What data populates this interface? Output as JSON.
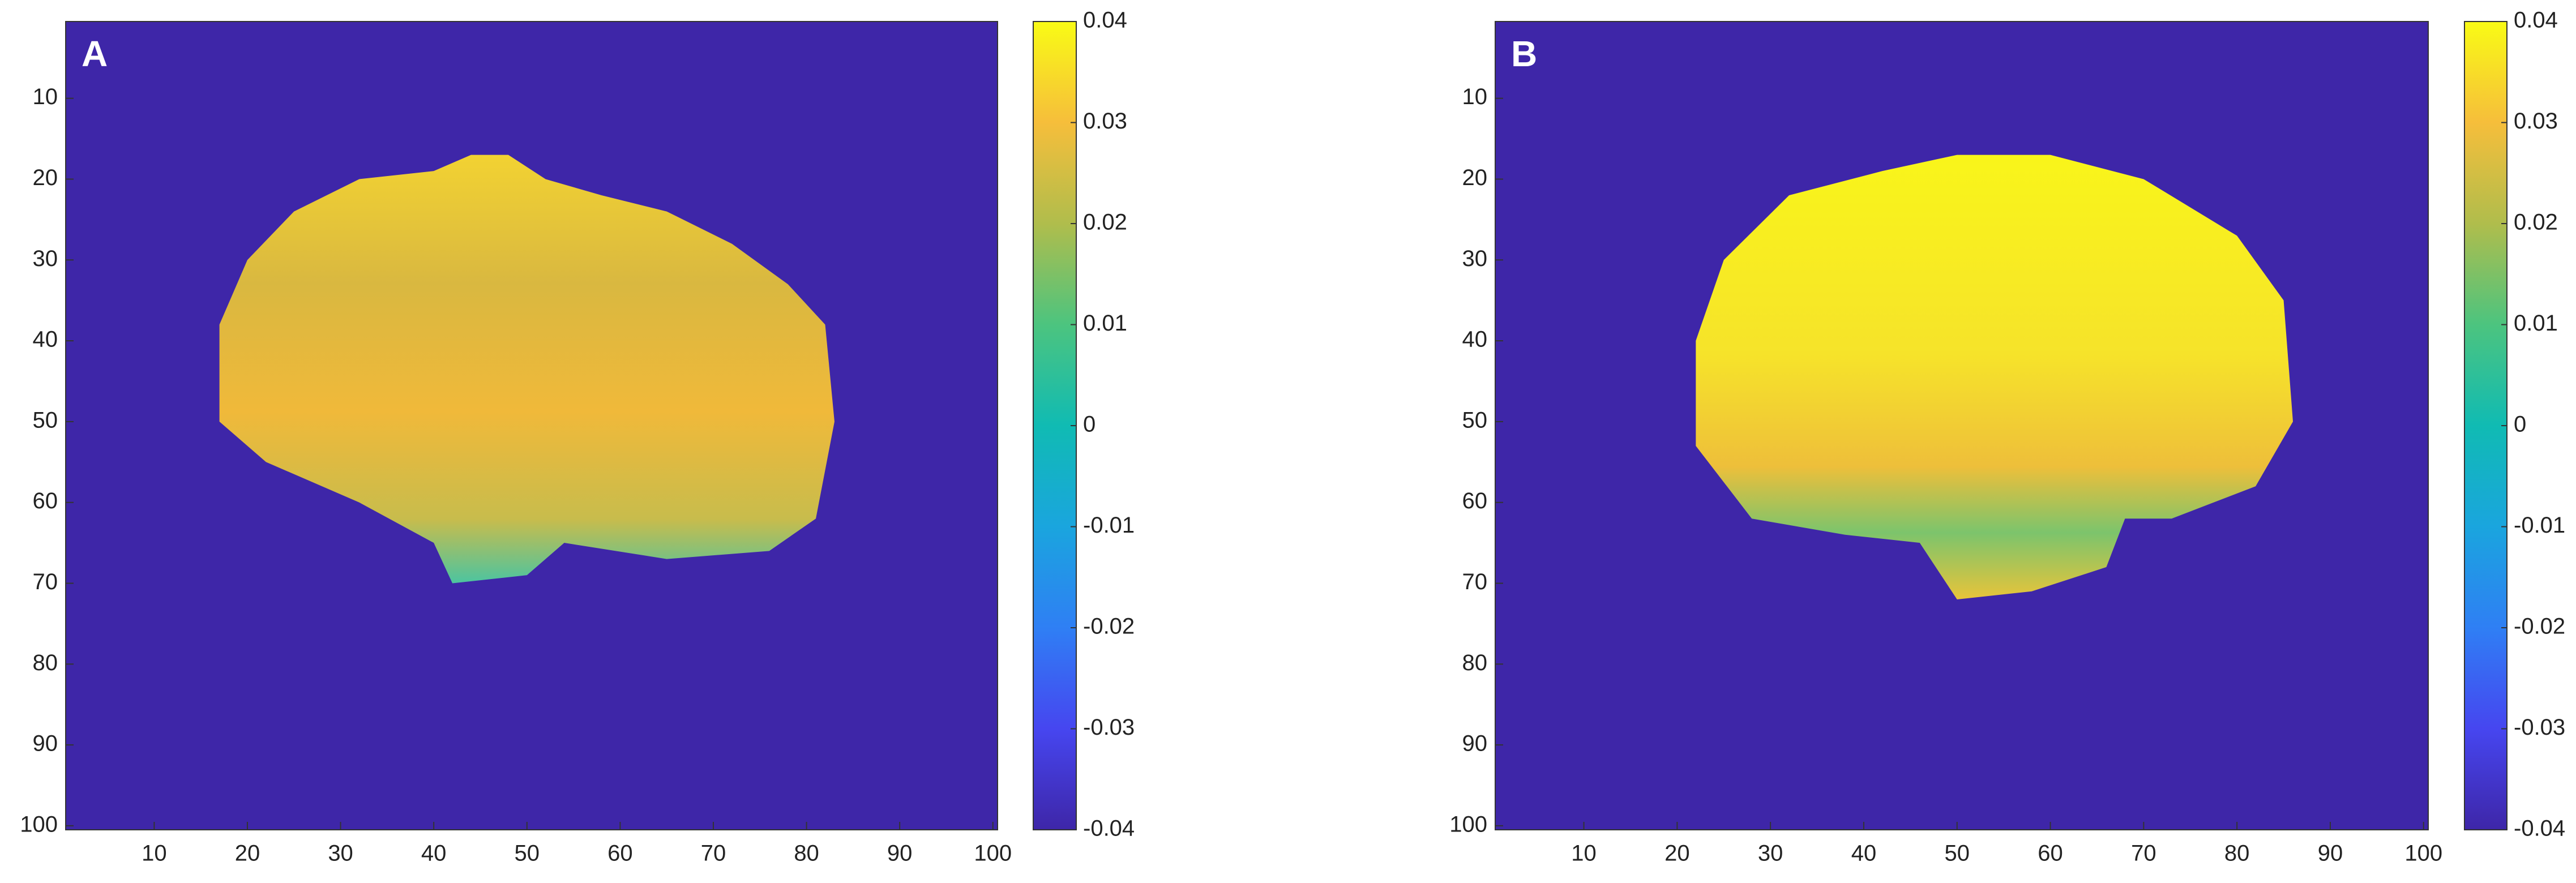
{
  "chart_data": [
    {
      "type": "heatmap",
      "title": "A",
      "xlim": [
        0.5,
        100.5
      ],
      "ylim": [
        0.5,
        100.5
      ],
      "xticks": [
        10,
        20,
        30,
        40,
        50,
        60,
        70,
        80,
        90,
        100
      ],
      "yticks": [
        10,
        20,
        30,
        40,
        50,
        60,
        70,
        80,
        90,
        100
      ],
      "clim": [
        -0.04,
        0.04
      ],
      "cticks": [
        -0.04,
        -0.03,
        -0.02,
        -0.01,
        0,
        0.01,
        0.02,
        0.03,
        0.04
      ],
      "colormap": [
        "#3e26a8",
        "#4646f0",
        "#2f7ff4",
        "#1aa5de",
        "#10bbb3",
        "#4cc47f",
        "#b0bd4c",
        "#f6be3b",
        "#f9fb15"
      ]
    },
    {
      "type": "heatmap",
      "title": "B",
      "xlim": [
        0.5,
        100.5
      ],
      "ylim": [
        0.5,
        100.5
      ],
      "xticks": [
        10,
        20,
        30,
        40,
        50,
        60,
        70,
        80,
        90,
        100
      ],
      "yticks": [
        10,
        20,
        30,
        40,
        50,
        60,
        70,
        80,
        90,
        100
      ],
      "clim": [
        -0.04,
        0.04
      ],
      "cticks": [
        -0.04,
        -0.03,
        -0.02,
        -0.01,
        0,
        0.01,
        0.02,
        0.03,
        0.04
      ],
      "colormap": [
        "#3e26a8",
        "#4646f0",
        "#2f7ff4",
        "#1aa5de",
        "#10bbb3",
        "#4cc47f",
        "#b0bd4c",
        "#f6be3b",
        "#f9fb15"
      ]
    }
  ]
}
